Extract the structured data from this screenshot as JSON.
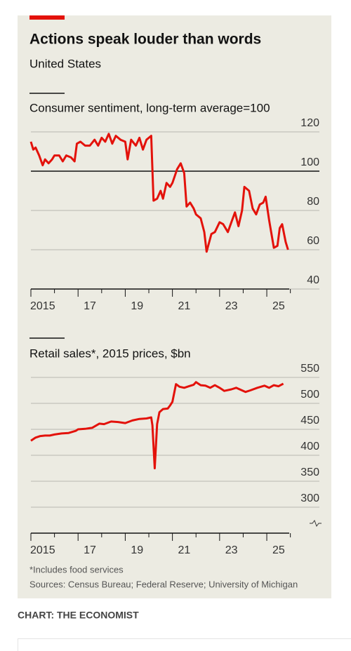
{
  "header": {
    "title": "Actions speak louder than words",
    "subtitle": "United States"
  },
  "chart_data": [
    {
      "type": "line",
      "title": "Consumer sentiment, long-term average=100",
      "color": "#e3120b",
      "x": [
        2015.0,
        2015.1,
        2015.2,
        2015.35,
        2015.5,
        2015.6,
        2015.75,
        2015.9,
        2016.0,
        2016.2,
        2016.35,
        2016.5,
        2016.7,
        2016.85,
        2016.95,
        2017.1,
        2017.3,
        2017.5,
        2017.7,
        2017.85,
        2018.0,
        2018.15,
        2018.3,
        2018.45,
        2018.6,
        2018.8,
        2019.0,
        2019.1,
        2019.25,
        2019.45,
        2019.6,
        2019.75,
        2019.9,
        2020.1,
        2020.2,
        2020.35,
        2020.5,
        2020.6,
        2020.75,
        2020.9,
        2021.0,
        2021.2,
        2021.35,
        2021.5,
        2021.6,
        2021.75,
        2021.9,
        2022.0,
        2022.2,
        2022.35,
        2022.45,
        2022.65,
        2022.8,
        2023.0,
        2023.15,
        2023.35,
        2023.5,
        2023.65,
        2023.8,
        2023.95,
        2024.05,
        2024.25,
        2024.4,
        2024.55,
        2024.7,
        2024.85,
        2024.95,
        2025.1,
        2025.3,
        2025.45,
        2025.55,
        2025.65,
        2025.8,
        2025.9
      ],
      "values": [
        115,
        111,
        112,
        108,
        103,
        106,
        104,
        106,
        108,
        108,
        105,
        108,
        107,
        105,
        114,
        115,
        113,
        113,
        116,
        113,
        117,
        115,
        119,
        114,
        118,
        116,
        115,
        106,
        116,
        113,
        117,
        111,
        116,
        118,
        85,
        86,
        90,
        86,
        94,
        92,
        94,
        101,
        104,
        99,
        82,
        84,
        81,
        78,
        76,
        69,
        59,
        68,
        69,
        74,
        73,
        69,
        74,
        79,
        72,
        80,
        92,
        90,
        81,
        78,
        83,
        84,
        87,
        75,
        61,
        62,
        71,
        73,
        64,
        60
      ],
      "xlim": [
        2015,
        2026.1
      ],
      "ylim": [
        40,
        120
      ],
      "yticks": [
        40,
        60,
        80,
        100,
        120
      ],
      "reference_line": 100,
      "xticks": [
        2015,
        {
          "value": 2017,
          "label": "17"
        },
        {
          "value": 2019,
          "label": "19"
        },
        {
          "value": 2021,
          "label": "21"
        },
        {
          "value": 2023,
          "label": "23"
        },
        {
          "value": 2025,
          "label": "25"
        }
      ],
      "xminor_ticks": [
        2016,
        2018,
        2020,
        2022,
        2024,
        2026
      ],
      "grid": true
    },
    {
      "type": "line",
      "title": "Retail sales*, 2015 prices, $bn",
      "color": "#e3120b",
      "x": [
        2015.0,
        2015.2,
        2015.4,
        2015.6,
        2015.8,
        2016.0,
        2016.3,
        2016.6,
        2016.9,
        2017.0,
        2017.3,
        2017.6,
        2017.9,
        2018.1,
        2018.4,
        2018.7,
        2019.0,
        2019.3,
        2019.6,
        2019.9,
        2020.1,
        2020.15,
        2020.25,
        2020.35,
        2020.45,
        2020.6,
        2020.8,
        2020.9,
        2021.0,
        2021.15,
        2021.3,
        2021.5,
        2021.7,
        2021.9,
        2022.0,
        2022.2,
        2022.4,
        2022.6,
        2022.8,
        2023.0,
        2023.2,
        2023.5,
        2023.7,
        2023.9,
        2024.1,
        2024.3,
        2024.6,
        2024.9,
        2025.1,
        2025.3,
        2025.5,
        2025.7
      ],
      "values": [
        428,
        434,
        437,
        438,
        438,
        440,
        442,
        443,
        447,
        450,
        451,
        453,
        461,
        460,
        465,
        464,
        462,
        467,
        470,
        471,
        473,
        458,
        375,
        460,
        483,
        489,
        490,
        496,
        503,
        537,
        532,
        530,
        533,
        536,
        541,
        535,
        534,
        530,
        535,
        530,
        524,
        527,
        530,
        526,
        522,
        525,
        530,
        534,
        530,
        535,
        533,
        538
      ],
      "xlim": [
        2015,
        2026.1
      ],
      "ylim": [
        250,
        550
      ],
      "yticks": [
        300,
        350,
        400,
        450,
        500,
        550
      ],
      "axis_break": true,
      "xticks": [
        2015,
        {
          "value": 2017,
          "label": "17"
        },
        {
          "value": 2019,
          "label": "19"
        },
        {
          "value": 2021,
          "label": "21"
        },
        {
          "value": 2023,
          "label": "23"
        },
        {
          "value": 2025,
          "label": "25"
        }
      ],
      "xminor_ticks": [
        2016,
        2018,
        2020,
        2022,
        2024,
        2026
      ],
      "grid": true
    }
  ],
  "footnote": "*Includes food services",
  "source": "Sources: Census Bureau; Federal Reserve; University of Michigan",
  "credit": "CHART: THE ECONOMIST"
}
